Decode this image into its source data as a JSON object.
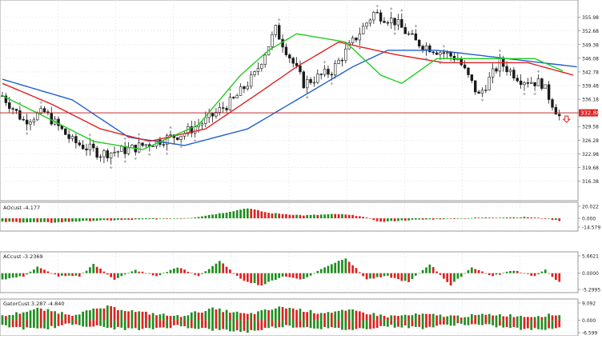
{
  "colors": {
    "bull": "#1a1a1a",
    "bear": "#1a1a1a",
    "jaw": "#1f5fd0",
    "teeth": "#e02020",
    "lips": "#22cc22",
    "up_bar": "#1f8f1f",
    "down_bar": "#e02020",
    "price_line": "#c03030",
    "price_tag_bg": "#e02020",
    "grid": "#e4e4e4",
    "fractal": "#9a9a9a",
    "arrow": "#e04040"
  },
  "chart_data": [
    {
      "type": "candlestick",
      "title": "",
      "ylim": [
        313.0,
        359.0
      ],
      "yticks": [
        "355.98",
        "352.68",
        "349.38",
        "346.08",
        "342.78",
        "339.48",
        "336.18",
        "332.88",
        "329.58",
        "326.28",
        "322.98",
        "319.68",
        "316.38"
      ],
      "current_price": "332.88",
      "bars": 160,
      "ohlc_anchors": [
        [
          0,
          337
        ],
        [
          6,
          331
        ],
        [
          12,
          333
        ],
        [
          20,
          326
        ],
        [
          28,
          323
        ],
        [
          36,
          324
        ],
        [
          44,
          326
        ],
        [
          52,
          328
        ],
        [
          58,
          331
        ],
        [
          66,
          336
        ],
        [
          72,
          342
        ],
        [
          78,
          353
        ],
        [
          86,
          340
        ],
        [
          94,
          343
        ],
        [
          100,
          350
        ],
        [
          106,
          357
        ],
        [
          112,
          355
        ],
        [
          118,
          350
        ],
        [
          124,
          348
        ],
        [
          130,
          346
        ],
        [
          136,
          337
        ],
        [
          142,
          345
        ],
        [
          148,
          341
        ],
        [
          154,
          340
        ],
        [
          159,
          332
        ]
      ],
      "alligator": {
        "jaw": [
          [
            0,
            341
          ],
          [
            20,
            336
          ],
          [
            36,
            327
          ],
          [
            52,
            325
          ],
          [
            70,
            329
          ],
          [
            86,
            337
          ],
          [
            100,
            344
          ],
          [
            110,
            348
          ],
          [
            124,
            348
          ],
          [
            144,
            346
          ],
          [
            164,
            344
          ]
        ],
        "teeth": [
          [
            0,
            340
          ],
          [
            14,
            335
          ],
          [
            28,
            329
          ],
          [
            42,
            326
          ],
          [
            58,
            329
          ],
          [
            72,
            337
          ],
          [
            84,
            344
          ],
          [
            96,
            350
          ],
          [
            112,
            347
          ],
          [
            126,
            345
          ],
          [
            150,
            345
          ],
          [
            163,
            342
          ]
        ],
        "lips": [
          [
            0,
            337
          ],
          [
            12,
            332
          ],
          [
            26,
            326
          ],
          [
            40,
            324
          ],
          [
            56,
            330
          ],
          [
            68,
            342
          ],
          [
            76,
            348
          ],
          [
            84,
            352
          ],
          [
            98,
            350
          ],
          [
            108,
            342
          ],
          [
            114,
            340
          ],
          [
            124,
            346
          ],
          [
            138,
            346
          ],
          [
            152,
            346
          ],
          [
            160,
            343
          ]
        ]
      }
    },
    {
      "type": "bar",
      "label": "AOcust -4.177",
      "yticks": [
        "20.022",
        "0.000",
        "-14.579"
      ],
      "ylim": [
        -14.579,
        20.022
      ],
      "anchors": [
        [
          0,
          -6
        ],
        [
          14,
          -7
        ],
        [
          26,
          -4
        ],
        [
          40,
          -2
        ],
        [
          54,
          1
        ],
        [
          64,
          10
        ],
        [
          70,
          17
        ],
        [
          76,
          9
        ],
        [
          86,
          5
        ],
        [
          96,
          7
        ],
        [
          102,
          4
        ],
        [
          108,
          -6
        ],
        [
          116,
          -3
        ],
        [
          126,
          -1
        ],
        [
          136,
          1
        ],
        [
          150,
          2
        ],
        [
          156,
          -1
        ],
        [
          159,
          -4
        ]
      ]
    },
    {
      "type": "bar",
      "label": "ACcust -3.2369",
      "yticks": [
        "5.6621",
        "0.0000",
        "-5.2995"
      ],
      "ylim": [
        -5.2995,
        5.6621
      ],
      "anchors": [
        [
          0,
          -2
        ],
        [
          6,
          -1
        ],
        [
          10,
          2
        ],
        [
          16,
          -1
        ],
        [
          22,
          -1
        ],
        [
          26,
          3
        ],
        [
          32,
          -2
        ],
        [
          38,
          1
        ],
        [
          44,
          -1
        ],
        [
          50,
          2
        ],
        [
          56,
          -1
        ],
        [
          62,
          4
        ],
        [
          68,
          -2
        ],
        [
          74,
          -4
        ],
        [
          80,
          -1
        ],
        [
          86,
          -2
        ],
        [
          92,
          2
        ],
        [
          98,
          5
        ],
        [
          104,
          -2
        ],
        [
          110,
          -1
        ],
        [
          116,
          -3
        ],
        [
          122,
          3
        ],
        [
          128,
          -4
        ],
        [
          134,
          2
        ],
        [
          140,
          -1
        ],
        [
          146,
          1
        ],
        [
          152,
          -1
        ],
        [
          155,
          1
        ],
        [
          159,
          -3
        ]
      ]
    },
    {
      "type": "bar",
      "label": "GatorCust 3.287 -4.840",
      "yticks": [
        "9.092",
        "0.000",
        "-6.599"
      ],
      "ylim": [
        -6.599,
        9.092
      ],
      "anchors_up": [
        [
          0,
          2
        ],
        [
          10,
          6
        ],
        [
          20,
          3
        ],
        [
          30,
          7
        ],
        [
          40,
          4
        ],
        [
          50,
          2
        ],
        [
          60,
          6
        ],
        [
          70,
          3
        ],
        [
          80,
          7
        ],
        [
          90,
          4
        ],
        [
          100,
          5
        ],
        [
          110,
          2
        ],
        [
          120,
          3
        ],
        [
          130,
          2
        ],
        [
          140,
          3
        ],
        [
          150,
          2
        ],
        [
          159,
          3
        ]
      ],
      "anchors_down": [
        [
          0,
          -3
        ],
        [
          10,
          -5
        ],
        [
          20,
          -2
        ],
        [
          30,
          -4
        ],
        [
          40,
          -5
        ],
        [
          50,
          -3
        ],
        [
          60,
          -5
        ],
        [
          70,
          -6
        ],
        [
          80,
          -3
        ],
        [
          90,
          -4
        ],
        [
          100,
          -5
        ],
        [
          110,
          -3
        ],
        [
          120,
          -4
        ],
        [
          130,
          -2
        ],
        [
          140,
          -3
        ],
        [
          150,
          -5
        ],
        [
          159,
          -4
        ]
      ]
    }
  ]
}
